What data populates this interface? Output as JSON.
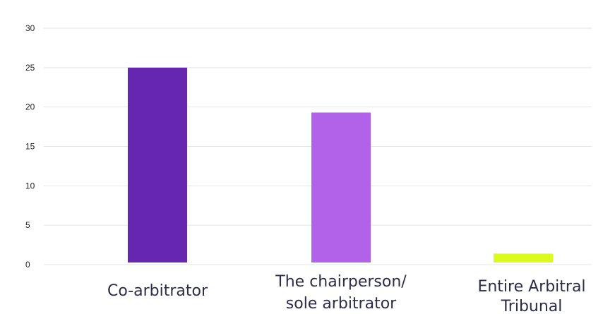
{
  "chart_data": {
    "type": "bar",
    "title": "",
    "xlabel": "",
    "ylabel": "",
    "categories": [
      [
        "Co-arbitrator"
      ],
      [
        "The chairperson/",
        "sole arbitrator"
      ],
      [
        "Entire Arbitral",
        "Tribunal"
      ]
    ],
    "values": [
      25,
      19.3,
      1.4
    ],
    "colors": [
      "#6626b0",
      "#b162e8",
      "#dcfa1b"
    ],
    "ylim": [
      0,
      30
    ],
    "yticks": [
      0,
      5,
      10,
      15,
      20,
      25,
      30
    ],
    "grid": true,
    "legend": "none"
  }
}
